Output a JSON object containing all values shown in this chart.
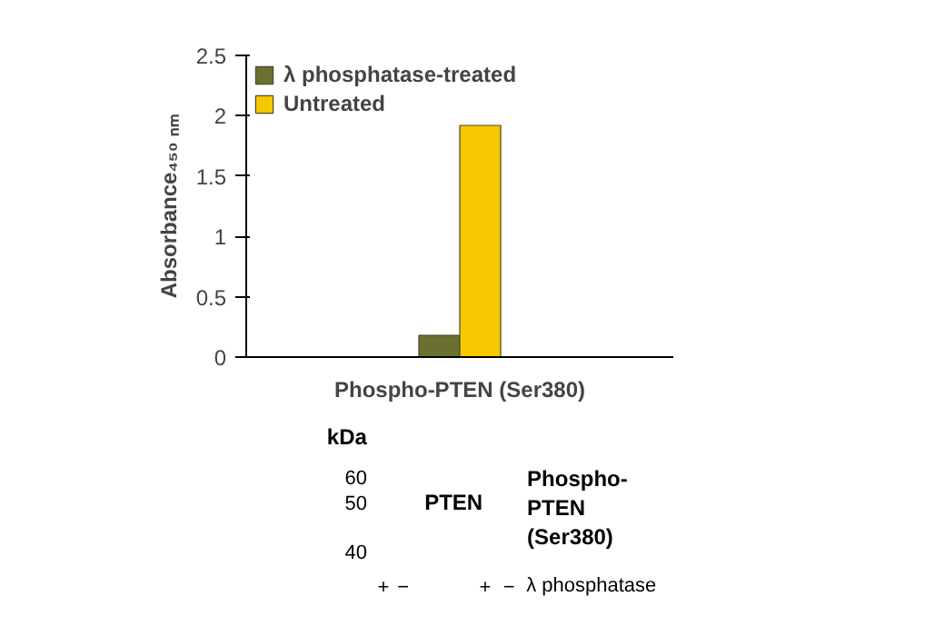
{
  "chart_data": {
    "type": "bar",
    "categories": [
      "Phospho-PTEN (Ser380)"
    ],
    "series": [
      {
        "name": "λ phosphatase-treated",
        "color": "#6b6f2f",
        "values": [
          0.18
        ]
      },
      {
        "name": "Untreated",
        "color": "#f5c800",
        "values": [
          1.92
        ]
      }
    ],
    "ylabel": "Absorbance₄₅₀ ₙₘ",
    "ylim": [
      0,
      2.5
    ],
    "yticks": [
      0,
      0.5,
      1,
      1.5,
      2,
      2.5
    ],
    "grid": false,
    "legend": "top left",
    "annotations": [
      "kDa",
      "60",
      "50",
      "40",
      "PTEN",
      "Phospho-PTEN (Ser380)",
      "+",
      "−",
      "+",
      "−",
      "λ phosphatase"
    ]
  }
}
